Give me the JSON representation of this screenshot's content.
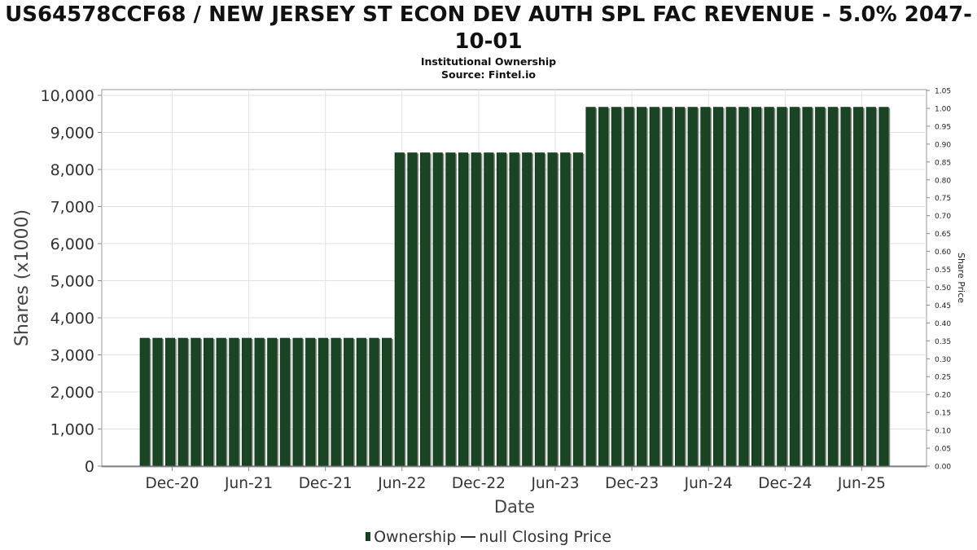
{
  "chart_data": {
    "type": "bar",
    "title": "US64578CCF68 / NEW JERSEY ST ECON DEV AUTH SPL FAC REVENUE - 5.0% 2047-10-01",
    "subtitle_lines": [
      "Institutional Ownership",
      "Source: Fintel.io"
    ],
    "xlabel": "Date",
    "ylabel": "Shares (x1000)",
    "y2label": "Share Price",
    "ylim": [
      0,
      10000
    ],
    "y2lim": [
      0,
      1.05
    ],
    "yticks": [
      "0",
      "1,000",
      "2,000",
      "3,000",
      "4,000",
      "5,000",
      "6,000",
      "7,000",
      "8,000",
      "9,000",
      "10,000"
    ],
    "y2ticks": [
      "0.00",
      "0.05",
      "0.10",
      "0.15",
      "0.20",
      "0.25",
      "0.30",
      "0.35",
      "0.40",
      "0.45",
      "0.50",
      "0.55",
      "0.60",
      "0.65",
      "0.70",
      "0.75",
      "0.80",
      "0.85",
      "0.90",
      "0.95",
      "1.00",
      "1.05"
    ],
    "xticks": [
      "Dec-20",
      "Jun-21",
      "Dec-21",
      "Jun-22",
      "Dec-22",
      "Jun-23",
      "Dec-23",
      "Jun-24",
      "Dec-24",
      "Jun-25"
    ],
    "grid": true,
    "legend_placement": "bottom-center",
    "series": [
      {
        "name": "Ownership",
        "color": "#1a4424",
        "values": [
          3450,
          3450,
          3450,
          3450,
          3450,
          3450,
          3450,
          3450,
          3450,
          3450,
          3450,
          3450,
          3450,
          3450,
          3450,
          3450,
          3450,
          3450,
          3450,
          3450,
          8450,
          8450,
          8450,
          8450,
          8450,
          8450,
          8450,
          8450,
          8450,
          8450,
          8450,
          8450,
          8450,
          8450,
          8450,
          9680,
          9680,
          9680,
          9680,
          9680,
          9680,
          9680,
          9680,
          9680,
          9680,
          9680,
          9680,
          9680,
          9680,
          9680,
          9680,
          9680,
          9680,
          9680,
          9680,
          9680,
          9680,
          9680,
          9680
        ]
      }
    ],
    "legend": {
      "ownership_label": "Ownership",
      "price_label": "null Closing Price"
    }
  }
}
